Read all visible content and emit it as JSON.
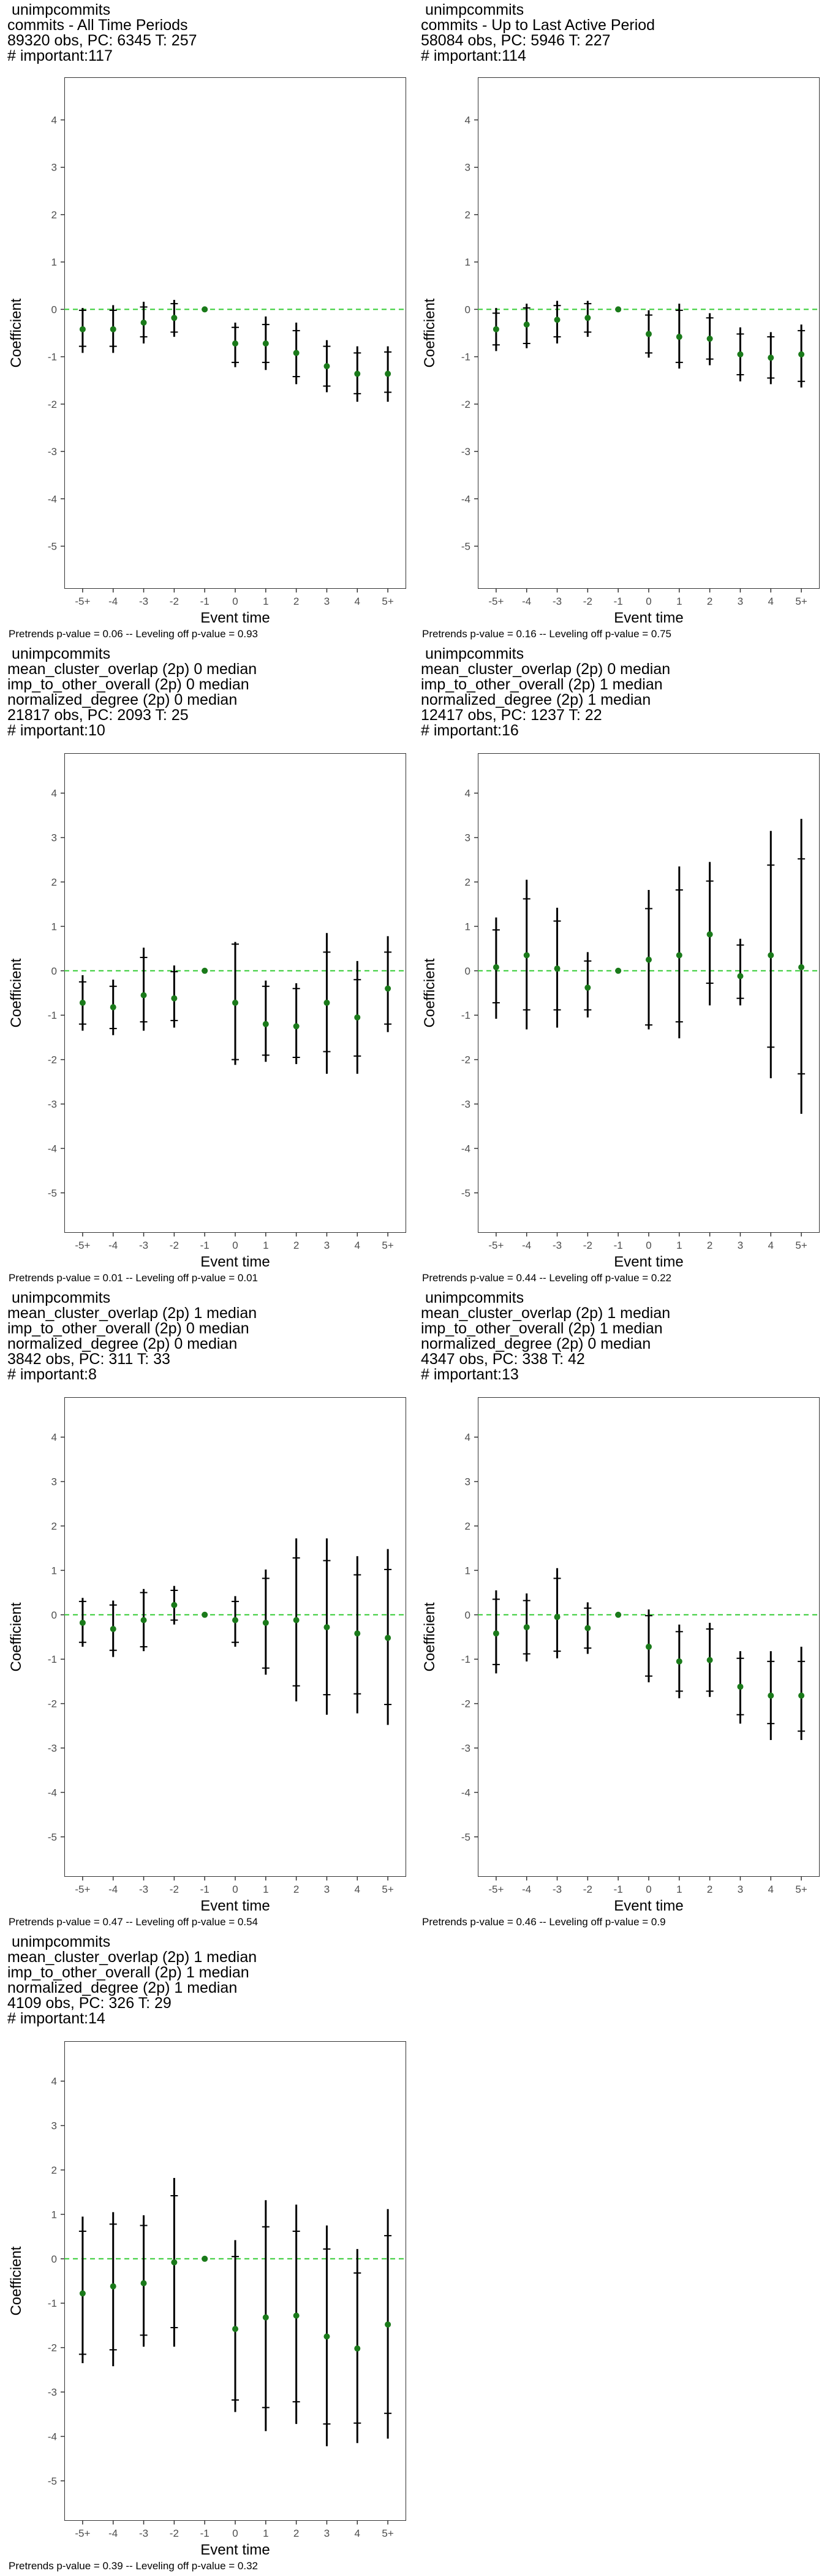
{
  "x_axis_label": "Event time",
  "y_axis_label": "Coefficient",
  "chart_data": [
    {
      "type": "scatter",
      "title_lines": [
        "unimpcommits",
        "commits - All Time Periods",
        "89320 obs, PC: 6345 T: 257",
        "# important:117"
      ],
      "note": "Pretrends p-value = 0.06 -- Leveling off p-value = 0.93",
      "categories": [
        "-5+",
        "-4",
        "-3",
        "-2",
        "-1",
        "0",
        "1",
        "2",
        "3",
        "4",
        "5+"
      ],
      "yticks": [
        -5,
        -4,
        -3,
        -2,
        -1,
        0,
        1,
        2,
        3,
        4
      ],
      "ylim": [
        -5.9,
        4.9
      ],
      "estimate": [
        -0.42,
        -0.42,
        -0.28,
        -0.18,
        0,
        -0.72,
        -0.72,
        -0.92,
        -1.2,
        -1.36,
        -1.36
      ],
      "ci95": [
        [
          -0.92,
          0.03
        ],
        [
          -0.92,
          0.09
        ],
        [
          -0.72,
          0.16
        ],
        [
          -0.58,
          0.2
        ],
        [
          0,
          0
        ],
        [
          -1.22,
          -0.28
        ],
        [
          -1.28,
          -0.15
        ],
        [
          -1.58,
          -0.28
        ],
        [
          -1.75,
          -0.65
        ],
        [
          -1.95,
          -0.78
        ],
        [
          -1.95,
          -0.78
        ]
      ],
      "ci90": [
        [
          -0.78,
          -0.02
        ],
        [
          -0.78,
          -0.02
        ],
        [
          -0.58,
          0.05
        ],
        [
          -0.48,
          0.12
        ],
        [
          0,
          0
        ],
        [
          -1.12,
          -0.38
        ],
        [
          -1.12,
          -0.32
        ],
        [
          -1.42,
          -0.45
        ],
        [
          -1.62,
          -0.78
        ],
        [
          -1.78,
          -0.92
        ],
        [
          -1.75,
          -0.9
        ]
      ],
      "grid": false,
      "reference_line": 0
    },
    {
      "type": "scatter",
      "title_lines": [
        "unimpcommits",
        "commits - Up to Last Active Period",
        "58084 obs, PC: 5946 T: 227",
        "# important:114"
      ],
      "note": "Pretrends p-value = 0.16 -- Leveling off p-value = 0.75",
      "categories": [
        "-5+",
        "-4",
        "-3",
        "-2",
        "-1",
        "0",
        "1",
        "2",
        "3",
        "4",
        "5+"
      ],
      "yticks": [
        -5,
        -4,
        -3,
        -2,
        -1,
        0,
        1,
        2,
        3,
        4
      ],
      "ylim": [
        -5.9,
        4.9
      ],
      "estimate": [
        -0.42,
        -0.32,
        -0.22,
        -0.18,
        0,
        -0.52,
        -0.58,
        -0.62,
        -0.95,
        -1.02,
        -0.95
      ],
      "ci95": [
        [
          -0.88,
          0.03
        ],
        [
          -0.82,
          0.12
        ],
        [
          -0.72,
          0.18
        ],
        [
          -0.58,
          0.18
        ],
        [
          0,
          0
        ],
        [
          -1.02,
          -0.02
        ],
        [
          -1.25,
          0.12
        ],
        [
          -1.18,
          -0.08
        ],
        [
          -1.52,
          -0.38
        ],
        [
          -1.58,
          -0.48
        ],
        [
          -1.65,
          -0.32
        ]
      ],
      "ci90": [
        [
          -0.75,
          -0.08
        ],
        [
          -0.72,
          0.03
        ],
        [
          -0.58,
          0.08
        ],
        [
          -0.48,
          0.12
        ],
        [
          0,
          0
        ],
        [
          -0.92,
          -0.12
        ],
        [
          -1.12,
          -0.02
        ],
        [
          -1.05,
          -0.18
        ],
        [
          -1.38,
          -0.52
        ],
        [
          -1.45,
          -0.58
        ],
        [
          -1.52,
          -0.45
        ]
      ],
      "grid": false,
      "reference_line": 0
    },
    {
      "type": "scatter",
      "title_lines": [
        "unimpcommits",
        "mean_cluster_overlap (2p) 0 median",
        "imp_to_other_overall (2p) 0 median",
        "normalized_degree (2p) 0 median",
        "21817 obs, PC: 2093 T: 25",
        "# important:10"
      ],
      "note": "Pretrends p-value = 0.01 -- Leveling off p-value = 0.01",
      "categories": [
        "-5+",
        "-4",
        "-3",
        "-2",
        "-1",
        "0",
        "1",
        "2",
        "3",
        "4",
        "5+"
      ],
      "yticks": [
        -5,
        -4,
        -3,
        -2,
        -1,
        0,
        1,
        2,
        3,
        4
      ],
      "ylim": [
        -5.9,
        4.9
      ],
      "estimate": [
        -0.72,
        -0.82,
        -0.55,
        -0.62,
        0,
        -0.72,
        -1.2,
        -1.25,
        -0.72,
        -1.05,
        -0.4
      ],
      "ci95": [
        [
          -1.35,
          -0.1
        ],
        [
          -1.45,
          -0.2
        ],
        [
          -1.35,
          0.52
        ],
        [
          -1.28,
          0.12
        ],
        [
          0,
          0
        ],
        [
          -2.12,
          0.65
        ],
        [
          -2.05,
          -0.22
        ],
        [
          -2.1,
          -0.28
        ],
        [
          -2.32,
          0.85
        ],
        [
          -2.32,
          0.22
        ],
        [
          -1.38,
          0.78
        ]
      ],
      "ci90": [
        [
          -1.2,
          -0.25
        ],
        [
          -1.3,
          -0.35
        ],
        [
          -1.15,
          0.3
        ],
        [
          -1.12,
          -0.02
        ],
        [
          0,
          0
        ],
        [
          -2.0,
          0.6
        ],
        [
          -1.9,
          -0.35
        ],
        [
          -1.95,
          -0.4
        ],
        [
          -1.82,
          0.42
        ],
        [
          -1.92,
          -0.2
        ],
        [
          -1.2,
          0.42
        ]
      ],
      "grid": false,
      "reference_line": 0
    },
    {
      "type": "scatter",
      "title_lines": [
        "unimpcommits",
        "mean_cluster_overlap (2p) 0 median",
        "imp_to_other_overall (2p) 1 median",
        "normalized_degree (2p) 1 median",
        "12417 obs, PC: 1237 T: 22",
        "# important:16"
      ],
      "note": "Pretrends p-value = 0.44 -- Leveling off p-value = 0.22",
      "categories": [
        "-5+",
        "-4",
        "-3",
        "-2",
        "-1",
        "0",
        "1",
        "2",
        "3",
        "4",
        "5+"
      ],
      "yticks": [
        -5,
        -4,
        -3,
        -2,
        -1,
        0,
        1,
        2,
        3,
        4
      ],
      "ylim": [
        -5.9,
        4.9
      ],
      "estimate": [
        0.08,
        0.35,
        0.05,
        -0.38,
        0,
        0.25,
        0.35,
        0.82,
        -0.12,
        0.35,
        0.08
      ],
      "ci95": [
        [
          -1.08,
          1.2
        ],
        [
          -1.32,
          2.05
        ],
        [
          -1.28,
          1.42
        ],
        [
          -1.05,
          0.42
        ],
        [
          0,
          0
        ],
        [
          -1.32,
          1.82
        ],
        [
          -1.52,
          2.35
        ],
        [
          -0.78,
          2.45
        ],
        [
          -0.78,
          0.72
        ],
        [
          -2.42,
          3.15
        ],
        [
          -3.22,
          3.42
        ]
      ],
      "ci90": [
        [
          -0.72,
          0.92
        ],
        [
          -0.88,
          1.62
        ],
        [
          -0.88,
          1.12
        ],
        [
          -0.88,
          0.22
        ],
        [
          0,
          0
        ],
        [
          -1.22,
          1.4
        ],
        [
          -1.15,
          1.82
        ],
        [
          -0.28,
          2.02
        ],
        [
          -0.62,
          0.58
        ],
        [
          -1.72,
          2.38
        ],
        [
          -2.32,
          2.52
        ]
      ],
      "grid": false,
      "reference_line": 0
    },
    {
      "type": "scatter",
      "title_lines": [
        "unimpcommits",
        "mean_cluster_overlap (2p) 1 median",
        "imp_to_other_overall (2p) 0 median",
        "normalized_degree (2p) 0 median",
        "3842 obs, PC: 311 T: 33",
        "# important:8"
      ],
      "note": "Pretrends p-value = 0.47 -- Leveling off p-value = 0.54",
      "categories": [
        "-5+",
        "-4",
        "-3",
        "-2",
        "-1",
        "0",
        "1",
        "2",
        "3",
        "4",
        "5+"
      ],
      "yticks": [
        -5,
        -4,
        -3,
        -2,
        -1,
        0,
        1,
        2,
        3,
        4
      ],
      "ylim": [
        -5.9,
        4.9
      ],
      "estimate": [
        -0.18,
        -0.32,
        -0.12,
        0.22,
        0,
        -0.12,
        -0.18,
        -0.12,
        -0.28,
        -0.42,
        -0.52
      ],
      "ci95": [
        [
          -0.72,
          0.38
        ],
        [
          -0.95,
          0.32
        ],
        [
          -0.82,
          0.58
        ],
        [
          -0.22,
          0.65
        ],
        [
          0,
          0
        ],
        [
          -0.72,
          0.42
        ],
        [
          -1.35,
          1.02
        ],
        [
          -1.95,
          1.72
        ],
        [
          -2.25,
          1.72
        ],
        [
          -2.22,
          1.32
        ],
        [
          -2.48,
          1.48
        ]
      ],
      "ci90": [
        [
          -0.62,
          0.3
        ],
        [
          -0.8,
          0.22
        ],
        [
          -0.72,
          0.5
        ],
        [
          -0.12,
          0.55
        ],
        [
          0,
          0
        ],
        [
          -0.62,
          0.3
        ],
        [
          -1.2,
          0.82
        ],
        [
          -1.6,
          1.28
        ],
        [
          -1.8,
          1.22
        ],
        [
          -1.78,
          0.9
        ],
        [
          -2.02,
          1.02
        ]
      ],
      "grid": false,
      "reference_line": 0
    },
    {
      "type": "scatter",
      "title_lines": [
        "unimpcommits",
        "mean_cluster_overlap (2p) 1 median",
        "imp_to_other_overall (2p) 1 median",
        "normalized_degree (2p) 0 median",
        "4347 obs, PC: 338 T: 42",
        "# important:13"
      ],
      "note": "Pretrends p-value = 0.46 -- Leveling off p-value = 0.9",
      "categories": [
        "-5+",
        "-4",
        "-3",
        "-2",
        "-1",
        "0",
        "1",
        "2",
        "3",
        "4",
        "5+"
      ],
      "yticks": [
        -5,
        -4,
        -3,
        -2,
        -1,
        0,
        1,
        2,
        3,
        4
      ],
      "ylim": [
        -5.9,
        4.9
      ],
      "estimate": [
        -0.42,
        -0.28,
        -0.05,
        -0.3,
        0,
        -0.72,
        -1.05,
        -1.02,
        -1.62,
        -1.82,
        -1.82
      ],
      "ci95": [
        [
          -1.32,
          0.55
        ],
        [
          -1.05,
          0.48
        ],
        [
          -0.98,
          1.05
        ],
        [
          -0.88,
          0.28
        ],
        [
          0,
          0
        ],
        [
          -1.52,
          0.12
        ],
        [
          -1.88,
          -0.22
        ],
        [
          -1.85,
          -0.18
        ],
        [
          -2.45,
          -0.82
        ],
        [
          -2.82,
          -0.82
        ],
        [
          -2.82,
          -0.72
        ]
      ],
      "ci90": [
        [
          -1.12,
          0.35
        ],
        [
          -0.88,
          0.32
        ],
        [
          -0.82,
          0.82
        ],
        [
          -0.75,
          0.15
        ],
        [
          0,
          0
        ],
        [
          -1.38,
          -0.02
        ],
        [
          -1.72,
          -0.38
        ],
        [
          -1.72,
          -0.32
        ],
        [
          -2.25,
          -0.98
        ],
        [
          -2.45,
          -1.05
        ],
        [
          -2.62,
          -1.05
        ]
      ],
      "grid": false,
      "reference_line": 0
    },
    {
      "type": "scatter",
      "title_lines": [
        "unimpcommits",
        "mean_cluster_overlap (2p) 1 median",
        "imp_to_other_overall (2p) 1 median",
        "normalized_degree (2p) 1 median",
        "4109 obs, PC: 326 T: 29",
        "# important:14"
      ],
      "note": "Pretrends p-value = 0.39 -- Leveling off p-value = 0.32",
      "categories": [
        "-5+",
        "-4",
        "-3",
        "-2",
        "-1",
        "0",
        "1",
        "2",
        "3",
        "4",
        "5+"
      ],
      "yticks": [
        -5,
        -4,
        -3,
        -2,
        -1,
        0,
        1,
        2,
        3,
        4
      ],
      "ylim": [
        -5.9,
        4.9
      ],
      "estimate": [
        -0.78,
        -0.62,
        -0.55,
        -0.08,
        0,
        -1.58,
        -1.32,
        -1.28,
        -1.75,
        -2.02,
        -1.48
      ],
      "ci95": [
        [
          -2.35,
          0.95
        ],
        [
          -2.42,
          1.05
        ],
        [
          -1.98,
          0.98
        ],
        [
          -1.98,
          1.82
        ],
        [
          0,
          0
        ],
        [
          -3.45,
          0.42
        ],
        [
          -3.88,
          1.32
        ],
        [
          -3.72,
          1.22
        ],
        [
          -4.22,
          0.75
        ],
        [
          -4.15,
          0.22
        ],
        [
          -4.05,
          1.12
        ]
      ],
      "ci90": [
        [
          -2.15,
          0.62
        ],
        [
          -2.05,
          0.78
        ],
        [
          -1.72,
          0.75
        ],
        [
          -1.55,
          1.42
        ],
        [
          0,
          0
        ],
        [
          -3.18,
          0.05
        ],
        [
          -3.35,
          0.72
        ],
        [
          -3.22,
          0.62
        ],
        [
          -3.72,
          0.22
        ],
        [
          -3.7,
          -0.32
        ],
        [
          -3.48,
          0.52
        ]
      ],
      "grid": false,
      "reference_line": 0
    }
  ],
  "colors": {
    "point": "#1a7a1a",
    "reference_line": "#33cc33",
    "errorbar": "#000000",
    "axis": "#333333",
    "tick_label": "#4d4d4d"
  }
}
